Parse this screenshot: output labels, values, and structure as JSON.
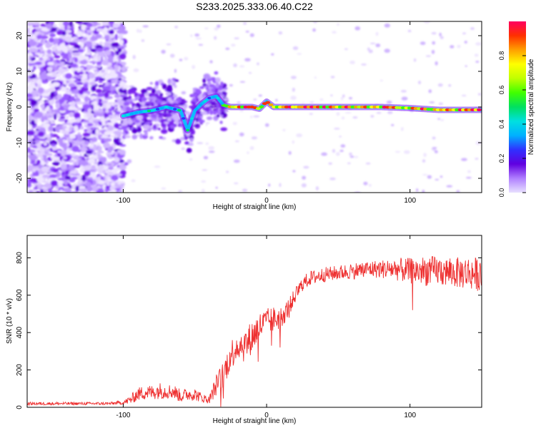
{
  "title": "S233.2025.333.06.40.C22",
  "chart_data": [
    {
      "type": "heatmap",
      "title": "S233.2025.333.06.40.C22",
      "xlabel": "Height of straight line (km)",
      "ylabel": "Frequency (Hz)",
      "xlim": [
        -167,
        150
      ],
      "ylim": [
        -24,
        24
      ],
      "xticks": [
        -100,
        0,
        100
      ],
      "xtick_labels": [
        "-100",
        "0",
        "100"
      ],
      "yticks": [
        -20,
        -10,
        0,
        10,
        20
      ],
      "ytick_labels": [
        "-20",
        "-10",
        "0",
        "10",
        "20"
      ],
      "colorbar": {
        "label": "Normalized spectral amplitude",
        "range": [
          0,
          1
        ],
        "ticks": [
          0.0,
          0.2,
          0.4,
          0.6,
          0.8
        ],
        "tick_labels": [
          "0.0",
          "0.2",
          "0.4",
          "0.6",
          "0.8"
        ],
        "colors": [
          "#e8e0ff",
          "#b080ff",
          "#6000e0",
          "#3030ff",
          "#00b0ff",
          "#00e0e0",
          "#00e060",
          "#40ff00",
          "#c0ff00",
          "#ffff00",
          "#ffa000",
          "#ff3000",
          "#ff0060"
        ]
      },
      "regions": [
        {
          "x_range": [
            -167,
            -100
          ],
          "description": "broadband noise",
          "amplitude": 0.1
        },
        {
          "x_range": [
            -100,
            -30
          ],
          "description": "weak signal, frequency drift",
          "amplitude": 0.3
        },
        {
          "x_range": [
            -30,
            150
          ],
          "description": "strong narrowband carrier near 0 Hz",
          "amplitude": 0.85
        }
      ],
      "ridge": {
        "x": [
          -100,
          -90,
          -80,
          -70,
          -60,
          -55,
          -50,
          -45,
          -40,
          -35,
          -30,
          -25,
          -20,
          -10,
          -5,
          0,
          5,
          10,
          20,
          40,
          60,
          80,
          100,
          120,
          150
        ],
        "y": [
          -2.5,
          -1.5,
          -1.0,
          0.0,
          -1.0,
          -6.5,
          -1.0,
          1.0,
          2.5,
          3.0,
          0.5,
          0.0,
          0.0,
          0.0,
          -0.5,
          1.5,
          0.0,
          0.0,
          0.0,
          0.0,
          0.0,
          0.0,
          -0.3,
          -0.8,
          -0.8
        ]
      }
    },
    {
      "type": "line",
      "xlabel": "Height of straight line (km)",
      "ylabel": "SNR (10 * v/v)",
      "xlim": [
        -167,
        150
      ],
      "ylim": [
        0,
        920
      ],
      "xticks": [
        -100,
        0,
        100
      ],
      "xtick_labels": [
        "-100",
        "0",
        "100"
      ],
      "yticks": [
        0,
        200,
        400,
        600,
        800
      ],
      "ytick_labels": [
        "0",
        "200",
        "400",
        "600",
        "800"
      ],
      "color": "#ee3030",
      "series": [
        {
          "name": "SNR",
          "x": [
            -167,
            -160,
            -150,
            -140,
            -130,
            -120,
            -110,
            -100,
            -95,
            -90,
            -85,
            -80,
            -75,
            -70,
            -65,
            -60,
            -55,
            -50,
            -45,
            -40,
            -35,
            -30,
            -25,
            -20,
            -15,
            -10,
            -5,
            0,
            5,
            10,
            15,
            20,
            25,
            30,
            40,
            50,
            60,
            70,
            80,
            90,
            100,
            110,
            120,
            130,
            140,
            150
          ],
          "values": [
            20,
            20,
            20,
            20,
            20,
            20,
            20,
            25,
            40,
            70,
            80,
            80,
            90,
            85,
            85,
            60,
            70,
            70,
            50,
            40,
            120,
            180,
            280,
            340,
            330,
            380,
            430,
            460,
            470,
            480,
            530,
            600,
            660,
            690,
            710,
            720,
            730,
            740,
            740,
            740,
            730,
            730,
            730,
            720,
            720,
            710
          ],
          "noise": [
            8,
            8,
            8,
            8,
            8,
            8,
            8,
            10,
            25,
            35,
            40,
            40,
            45,
            40,
            40,
            35,
            35,
            35,
            25,
            20,
            60,
            70,
            80,
            90,
            90,
            90,
            80,
            70,
            70,
            60,
            50,
            40,
            40,
            40,
            40,
            40,
            45,
            45,
            50,
            60,
            70,
            80,
            80,
            80,
            90,
            90
          ]
        }
      ]
    }
  ]
}
